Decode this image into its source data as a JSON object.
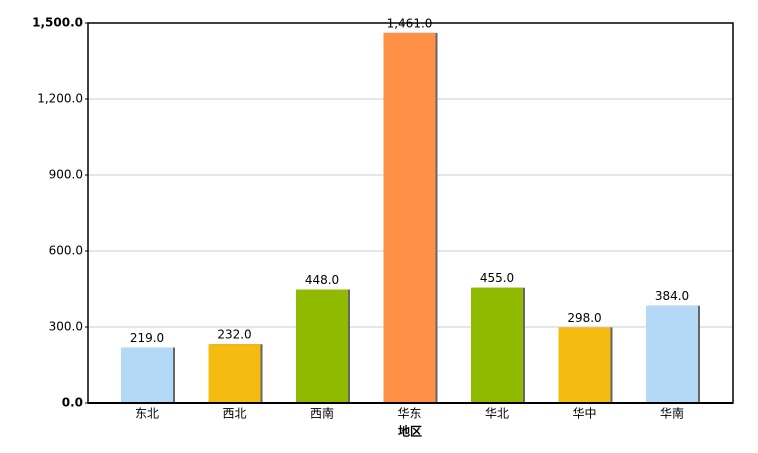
{
  "chart_data": {
    "type": "bar",
    "x_label": "地区",
    "categories": [
      "东北",
      "西北",
      "西南",
      "华东",
      "华北",
      "华中",
      "华南"
    ],
    "values": [
      219,
      232,
      448,
      1461,
      455,
      298,
      384
    ],
    "value_labels": [
      "219.0",
      "232.0",
      "448.0",
      "1,461.0",
      "455.0",
      "298.0",
      "384.0"
    ],
    "colors": [
      "#b3d9f7",
      "#f5bb10",
      "#8fba00",
      "#ff9147",
      "#8fba00",
      "#f5bb10",
      "#b3d9f7"
    ],
    "ylim": [
      0,
      1500
    ],
    "yticks": [
      {
        "value": 0,
        "label": "0.0"
      },
      {
        "value": 300,
        "label": "300.0"
      },
      {
        "value": 600,
        "label": "600.0"
      },
      {
        "value": 900,
        "label": "900.0"
      },
      {
        "value": 1200,
        "label": "1,200.0"
      },
      {
        "value": 1500,
        "label": "1,500.0"
      }
    ],
    "grid": true
  }
}
